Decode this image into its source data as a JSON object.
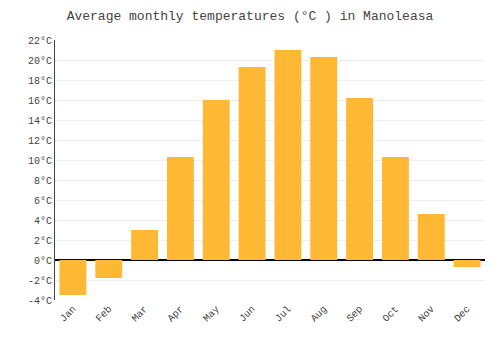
{
  "chart_data": {
    "type": "bar",
    "title": "Average monthly temperatures (°C ) in Manoleasa",
    "categories": [
      "Jan",
      "Feb",
      "Mar",
      "Apr",
      "May",
      "Jun",
      "Jul",
      "Aug",
      "Sep",
      "Oct",
      "Nov",
      "Dec"
    ],
    "values": [
      -3.5,
      -1.8,
      3.0,
      10.3,
      16.0,
      19.3,
      21.0,
      20.3,
      16.2,
      10.3,
      4.6,
      -0.7
    ],
    "color": "#FFB833",
    "ylim": [
      -4,
      22
    ],
    "yticks": [
      {
        "value": -4,
        "label": "-4°C"
      },
      {
        "value": -2,
        "label": "-2°C"
      },
      {
        "value": 0,
        "label": "0°C"
      },
      {
        "value": 2,
        "label": "2°C"
      },
      {
        "value": 4,
        "label": "4°C"
      },
      {
        "value": 6,
        "label": "6°C"
      },
      {
        "value": 8,
        "label": "8°C"
      },
      {
        "value": 10,
        "label": "10°C"
      },
      {
        "value": 12,
        "label": "12°C"
      },
      {
        "value": 14,
        "label": "14°C"
      },
      {
        "value": 16,
        "label": "16°C"
      },
      {
        "value": 18,
        "label": "18°C"
      },
      {
        "value": 20,
        "label": "20°C"
      },
      {
        "value": 22,
        "label": "22°C"
      }
    ],
    "grid": true
  }
}
